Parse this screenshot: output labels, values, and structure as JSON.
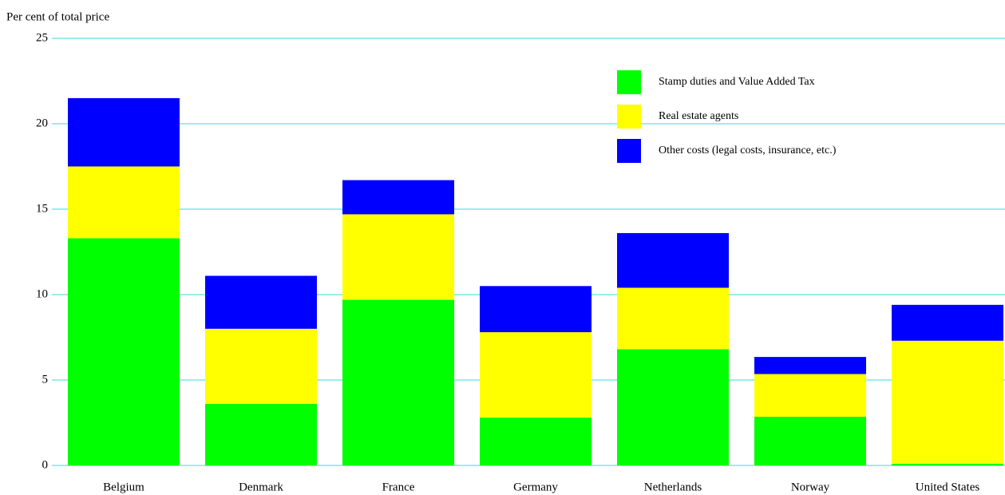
{
  "chart_data": {
    "type": "stacked_bar",
    "y_axis_label": "Per cent of total price",
    "categories": [
      "Belgium",
      "Denmark",
      "France",
      "Germany",
      "Netherlands",
      "Norway",
      "United States"
    ],
    "series": [
      {
        "name": "Stamp duties and Value Added Tax",
        "color": "#00ff00",
        "values": [
          13.3,
          3.6,
          9.7,
          2.8,
          6.8,
          2.85,
          0.1
        ]
      },
      {
        "name": "Real estate agents",
        "color": "#ffff00",
        "values": [
          4.2,
          4.4,
          5.0,
          5.0,
          3.6,
          2.5,
          7.2
        ]
      },
      {
        "name": "Other costs (legal costs, insurance, etc.)",
        "color": "#0000ff",
        "values": [
          4.0,
          3.1,
          2.0,
          2.7,
          3.2,
          1.0,
          2.1
        ]
      }
    ],
    "ylim": [
      0,
      25
    ],
    "yticks": [
      0,
      5,
      10,
      15,
      20,
      25
    ],
    "grid": true,
    "grid_color": "#33dddd",
    "legend": "top-right"
  }
}
